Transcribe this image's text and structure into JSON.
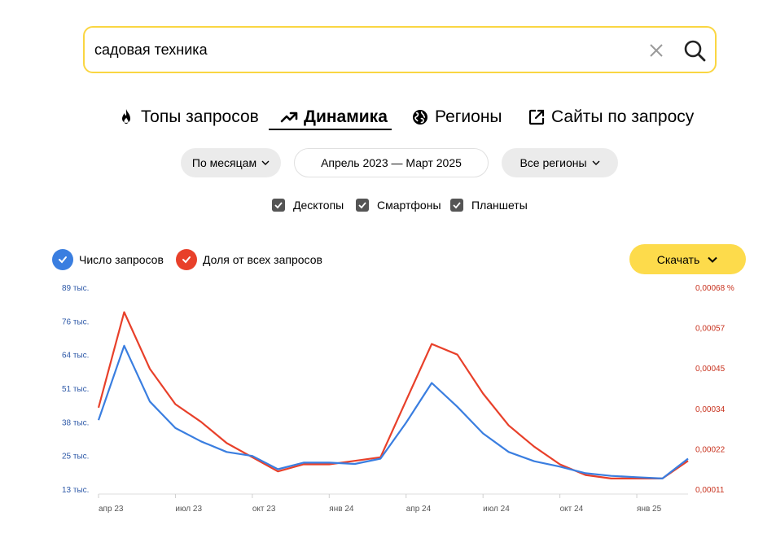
{
  "search": {
    "value": "садовая техника"
  },
  "tabs": [
    {
      "label": "Топы запросов"
    },
    {
      "label": "Динамика"
    },
    {
      "label": "Регионы"
    },
    {
      "label": "Сайты по запросу"
    }
  ],
  "filters": {
    "period": "По месяцам",
    "range": "Апрель 2023 — Март 2025",
    "region": "Все регионы"
  },
  "devices": [
    "Десктопы",
    "Смартфоны",
    "Планшеты"
  ],
  "legend": {
    "count": "Число запросов",
    "share": "Доля от всех запросов"
  },
  "download_label": "Скачать",
  "colors": {
    "accent": "#fad642",
    "count": "#3a7ee0",
    "share": "#e8402a"
  },
  "chart_data": {
    "type": "line",
    "x": [
      "апр 23",
      "май 23",
      "июн 23",
      "июл 23",
      "авг 23",
      "сен 23",
      "окт 23",
      "ноя 23",
      "дек 23",
      "янв 24",
      "фев 24",
      "мар 24",
      "апр 24",
      "май 24",
      "июн 24",
      "июл 24",
      "авг 24",
      "сен 24",
      "окт 24",
      "ноя 24",
      "дек 24",
      "янв 25",
      "фев 25",
      "мар 25"
    ],
    "x_tick_labels": [
      "апр 23",
      "июл 23",
      "окт 23",
      "янв 24",
      "апр 24",
      "июл 24",
      "окт 24",
      "янв 25"
    ],
    "y_left": {
      "ticks": [
        "13 тыс.",
        "25 тыс.",
        "38 тыс.",
        "51 тыс.",
        "64 тыс.",
        "76 тыс.",
        "89 тыс."
      ],
      "range": [
        13,
        89
      ]
    },
    "y_right": {
      "ticks": [
        "0,00011",
        "0,00022",
        "0,00034",
        "0,00045",
        "0,00057",
        "0,00068 %"
      ],
      "range": [
        0.00011,
        0.00068
      ]
    },
    "series": [
      {
        "name": "Число запросов",
        "axis": "left",
        "values": [
          39,
          67,
          46,
          36,
          31,
          27,
          25.5,
          20.5,
          23,
          23,
          22.5,
          24.5,
          38,
          53,
          44,
          34,
          27,
          23.5,
          21.5,
          19,
          18,
          17.5,
          17,
          24.5
        ]
      },
      {
        "name": "Доля от всех запросов",
        "axis": "right",
        "values": [
          0.00034,
          0.00061,
          0.00045,
          0.00035,
          0.0003,
          0.00024,
          0.0002,
          0.00016,
          0.00018,
          0.00018,
          0.00019,
          0.0002,
          0.00036,
          0.00052,
          0.00049,
          0.00038,
          0.00029,
          0.00023,
          0.00018,
          0.00015,
          0.00014,
          0.00014,
          0.00014,
          0.00019
        ]
      }
    ]
  }
}
